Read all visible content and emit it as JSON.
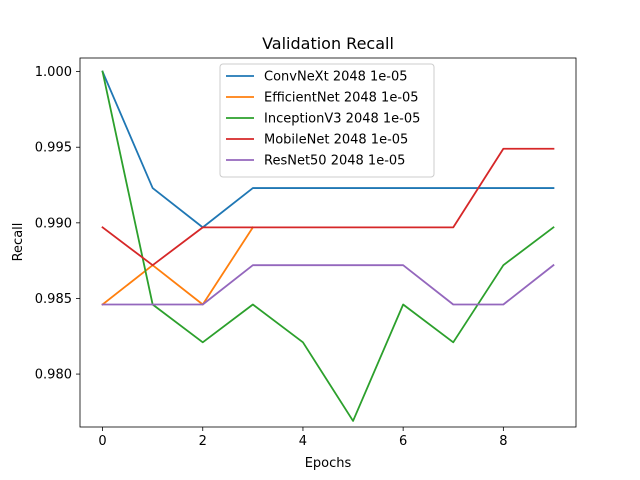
{
  "chart_data": {
    "type": "line",
    "title": "Validation Recall",
    "xlabel": "Epochs",
    "ylabel": "Recall",
    "x": [
      0,
      1,
      2,
      3,
      4,
      5,
      6,
      7,
      8,
      9
    ],
    "xlim": [
      -0.45,
      9.45
    ],
    "ylim": [
      0.9765,
      1.0009
    ],
    "xticks": [
      0,
      2,
      4,
      6,
      8
    ],
    "yticks": [
      0.98,
      0.985,
      0.99,
      0.995,
      1.0
    ],
    "ytick_labels": [
      "0.980",
      "0.985",
      "0.990",
      "0.995",
      "1.000"
    ],
    "grid": false,
    "legend_position": "top-center",
    "series": [
      {
        "name": "ConvNeXt 2048 1e-05",
        "color": "#1f77b4",
        "values": [
          1.0,
          0.9923,
          0.9897,
          0.9923,
          0.9923,
          0.9923,
          0.9923,
          0.9923,
          0.9923,
          0.9923
        ]
      },
      {
        "name": "EfficientNet 2048 1e-05",
        "color": "#ff7f0e",
        "values": [
          0.9846,
          0.9872,
          0.9846,
          0.9897,
          null,
          null,
          null,
          null,
          null,
          null
        ]
      },
      {
        "name": "InceptionV3 2048 1e-05",
        "color": "#2ca02c",
        "values": [
          1.0,
          0.9846,
          0.9821,
          0.9846,
          0.9821,
          0.9769,
          0.9846,
          0.9821,
          0.9872,
          0.9897
        ]
      },
      {
        "name": "MobileNet 2048 1e-05",
        "color": "#d62728",
        "values": [
          0.9897,
          0.9872,
          0.9897,
          0.9897,
          0.9897,
          0.9897,
          0.9897,
          0.9897,
          0.9949,
          0.9949
        ]
      },
      {
        "name": "ResNet50 2048 1e-05",
        "color": "#9467bd",
        "values": [
          0.9846,
          0.9846,
          0.9846,
          0.9872,
          0.9872,
          0.9872,
          0.9872,
          0.9846,
          0.9846,
          0.9872
        ]
      }
    ]
  }
}
